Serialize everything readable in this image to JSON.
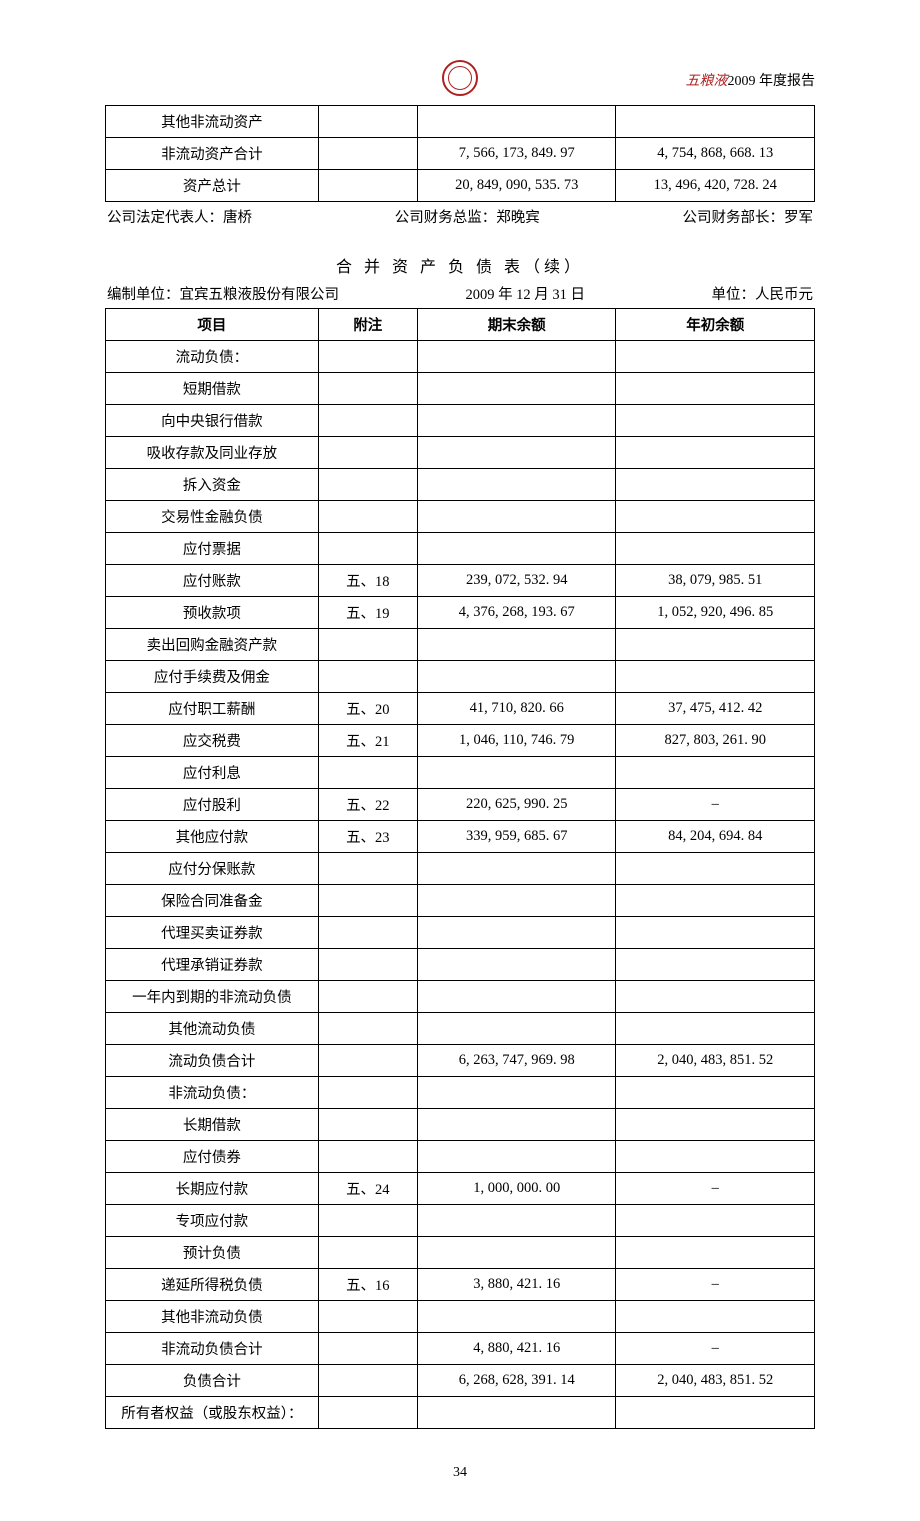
{
  "header": {
    "brand": "五粮液",
    "report_label": "2009 年度报告"
  },
  "top_table": {
    "rows": [
      {
        "item": "其他非流动资产",
        "end": "",
        "begin": ""
      },
      {
        "item": "非流动资产合计",
        "end": "7, 566, 173, 849. 97",
        "begin": "4, 754, 868, 668. 13"
      },
      {
        "item": "资产总计",
        "end": "20, 849, 090, 535. 73",
        "begin": "13, 496, 420, 728. 24"
      }
    ]
  },
  "signatures": {
    "legal_rep": "公司法定代表人：唐桥",
    "cfo": "公司财务总监：郑晚宾",
    "fin_mgr": "公司财务部长：罗军"
  },
  "section_title": "合 并 资 产 负 债 表（续）",
  "sub_header": {
    "org": "编制单位：宜宾五粮液股份有限公司",
    "date": "2009 年 12 月 31 日",
    "unit": "单位：人民币元"
  },
  "main_table": {
    "headers": {
      "c1": "项目",
      "c2": "附注",
      "c3": "期末余额",
      "c4": "年初余额"
    },
    "rows": [
      {
        "item": "流动负债：",
        "note": "",
        "end": "",
        "begin": ""
      },
      {
        "item": "短期借款",
        "note": "",
        "end": "",
        "begin": ""
      },
      {
        "item": "向中央银行借款",
        "note": "",
        "end": "",
        "begin": ""
      },
      {
        "item": "吸收存款及同业存放",
        "note": "",
        "end": "",
        "begin": ""
      },
      {
        "item": "拆入资金",
        "note": "",
        "end": "",
        "begin": ""
      },
      {
        "item": "交易性金融负债",
        "note": "",
        "end": "",
        "begin": ""
      },
      {
        "item": "应付票据",
        "note": "",
        "end": "",
        "begin": ""
      },
      {
        "item": "应付账款",
        "note": "五、18",
        "end": "239, 072, 532. 94",
        "begin": "38, 079, 985. 51"
      },
      {
        "item": "预收款项",
        "note": "五、19",
        "end": "4, 376, 268, 193. 67",
        "begin": "1, 052, 920, 496. 85"
      },
      {
        "item": "卖出回购金融资产款",
        "note": "",
        "end": "",
        "begin": ""
      },
      {
        "item": "应付手续费及佣金",
        "note": "",
        "end": "",
        "begin": ""
      },
      {
        "item": "应付职工薪酬",
        "note": "五、20",
        "end": "41, 710, 820. 66",
        "begin": "37, 475, 412. 42"
      },
      {
        "item": "应交税费",
        "note": "五、21",
        "end": "1, 046, 110, 746. 79",
        "begin": "827, 803, 261. 90"
      },
      {
        "item": "应付利息",
        "note": "",
        "end": "",
        "begin": ""
      },
      {
        "item": "应付股利",
        "note": "五、22",
        "end": "220, 625, 990. 25",
        "begin": "–"
      },
      {
        "item": "其他应付款",
        "note": "五、23",
        "end": "339, 959, 685. 67",
        "begin": "84, 204, 694. 84"
      },
      {
        "item": "应付分保账款",
        "note": "",
        "end": "",
        "begin": ""
      },
      {
        "item": "保险合同准备金",
        "note": "",
        "end": "",
        "begin": ""
      },
      {
        "item": "代理买卖证券款",
        "note": "",
        "end": "",
        "begin": ""
      },
      {
        "item": "代理承销证券款",
        "note": "",
        "end": "",
        "begin": ""
      },
      {
        "item": "一年内到期的非流动负债",
        "note": "",
        "end": "",
        "begin": ""
      },
      {
        "item": "其他流动负债",
        "note": "",
        "end": "",
        "begin": ""
      },
      {
        "item": "流动负债合计",
        "note": "",
        "end": "6, 263, 747, 969. 98",
        "begin": "2, 040, 483, 851. 52"
      },
      {
        "item": "非流动负债：",
        "note": "",
        "end": "",
        "begin": ""
      },
      {
        "item": "长期借款",
        "note": "",
        "end": "",
        "begin": ""
      },
      {
        "item": "应付债券",
        "note": "",
        "end": "",
        "begin": ""
      },
      {
        "item": "长期应付款",
        "note": "五、24",
        "end": "1, 000, 000. 00",
        "begin": "–"
      },
      {
        "item": "专项应付款",
        "note": "",
        "end": "",
        "begin": ""
      },
      {
        "item": "预计负债",
        "note": "",
        "end": "",
        "begin": ""
      },
      {
        "item": "递延所得税负债",
        "note": "五、16",
        "end": "3, 880, 421. 16",
        "begin": "–"
      },
      {
        "item": "其他非流动负债",
        "note": "",
        "end": "",
        "begin": ""
      },
      {
        "item": "非流动负债合计",
        "note": "",
        "end": "4, 880, 421. 16",
        "begin": "–"
      },
      {
        "item": "负债合计",
        "note": "",
        "end": "6, 268, 628, 391. 14",
        "begin": "2, 040, 483, 851. 52"
      },
      {
        "item": "所有者权益（或股东权益）：",
        "note": "",
        "end": "",
        "begin": ""
      }
    ]
  },
  "page_number": "34",
  "colors": {
    "brand_red": "#b02020",
    "text": "#000000",
    "bg": "#ffffff",
    "border": "#000000"
  }
}
